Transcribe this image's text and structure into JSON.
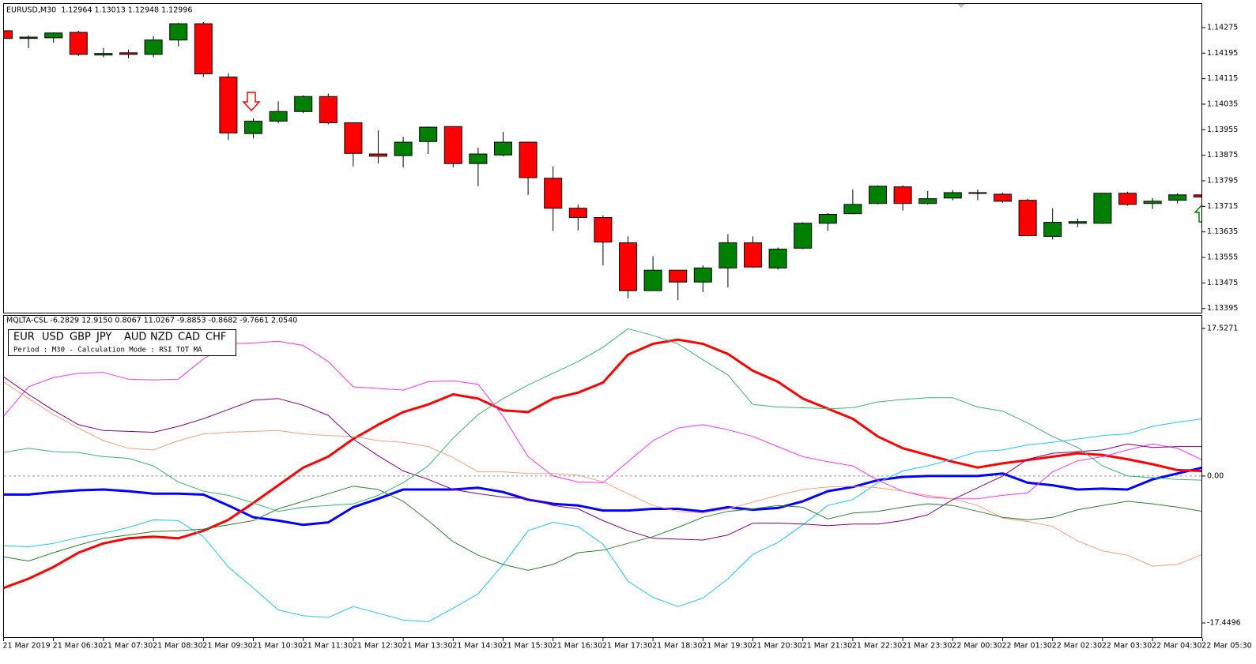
{
  "chart_data": [
    {
      "type": "candlestick",
      "title": "EURUSD,M30  1.12964 1.13013 1.12948 1.12996",
      "up_color": "#008000",
      "down_color": "#ff0000",
      "open": [
        1.14265,
        1.14241,
        1.14243,
        1.1426,
        1.14189,
        1.14196,
        1.14191,
        1.14236,
        1.14287,
        1.1412,
        1.13943,
        1.13982,
        1.14012,
        1.14059,
        1.13977,
        1.13879,
        1.13874,
        1.13918,
        1.13965,
        1.13849,
        1.13876,
        1.13916,
        1.13803,
        1.13709,
        1.1368,
        1.13601,
        1.13451,
        1.13515,
        1.13478,
        1.13522,
        1.13601,
        1.13522,
        1.13584,
        1.13662,
        1.13692,
        1.13724,
        1.13776,
        1.13724,
        1.13741,
        1.13756,
        1.13753,
        1.13734,
        1.13621,
        1.13662,
        1.13662,
        1.13756,
        1.13724,
        1.13734,
        1.13751
      ],
      "high": [
        1.14265,
        1.1425,
        1.1426,
        1.14265,
        1.14211,
        1.14206,
        1.14248,
        1.1429,
        1.14292,
        1.14132,
        1.1399,
        1.14044,
        1.14063,
        1.14068,
        1.13977,
        1.13953,
        1.13933,
        1.13965,
        1.13965,
        1.13899,
        1.13948,
        1.13916,
        1.1384,
        1.13721,
        1.13687,
        1.13621,
        1.13559,
        1.13515,
        1.1353,
        1.13628,
        1.13621,
        1.13586,
        1.13665,
        1.13694,
        1.13768,
        1.13781,
        1.13781,
        1.13763,
        1.13766,
        1.13768,
        1.13758,
        1.13739,
        1.13709,
        1.13677,
        1.13756,
        1.13761,
        1.13741,
        1.13756,
        1.13751
      ],
      "low": [
        1.14236,
        1.14211,
        1.14228,
        1.14186,
        1.14182,
        1.14179,
        1.14182,
        1.14216,
        1.1412,
        1.13923,
        1.13928,
        1.13975,
        1.14007,
        1.13972,
        1.1384,
        1.13849,
        1.13837,
        1.13879,
        1.13837,
        1.13778,
        1.13871,
        1.13751,
        1.13638,
        1.1364,
        1.1353,
        1.13426,
        1.13451,
        1.13421,
        1.13446,
        1.13461,
        1.13522,
        1.13517,
        1.13581,
        1.13638,
        1.1369,
        1.13721,
        1.13702,
        1.13721,
        1.13734,
        1.13734,
        1.13726,
        1.13621,
        1.13611,
        1.1365,
        1.1366,
        1.13717,
        1.13707,
        1.13724,
        1.13744
      ],
      "close": [
        1.14241,
        1.14245,
        1.14258,
        1.14191,
        1.14194,
        1.14191,
        1.14236,
        1.14287,
        1.1413,
        1.13945,
        1.13982,
        1.14012,
        1.14059,
        1.13977,
        1.13881,
        1.13872,
        1.13916,
        1.13963,
        1.13849,
        1.13879,
        1.13916,
        1.13805,
        1.13709,
        1.1368,
        1.13603,
        1.13451,
        1.13515,
        1.13478,
        1.13522,
        1.13601,
        1.13525,
        1.13581,
        1.13662,
        1.1369,
        1.13721,
        1.13778,
        1.13724,
        1.13739,
        1.13758,
        1.13758,
        1.13731,
        1.13623,
        1.13665,
        1.13667,
        1.13756,
        1.13721,
        1.13731,
        1.13751,
        1.13744
      ],
      "ylim": [
        1.13382,
        1.14349
      ],
      "yticks": [
        1.13395,
        1.13475,
        1.13555,
        1.13635,
        1.13715,
        1.13795,
        1.13875,
        1.13955,
        1.14035,
        1.14115,
        1.14195,
        1.14275
      ]
    },
    {
      "type": "line",
      "title": "MQLTA-CSL -6.2829 12.9150 0.8067 11.0267 -9.8853 -0.8682 -9.7661 2.0540",
      "subtitle": "Period : M30 - Calculation Mode : RSI TOT MA",
      "categories": [
        "21 Mar 2019",
        null,
        "21 Mar 06:30",
        null,
        "21 Mar 07:30",
        null,
        "21 Mar 08:30",
        null,
        "21 Mar 09:30",
        null,
        "21 Mar 10:30",
        null,
        "21 Mar 11:30",
        null,
        "21 Mar 12:30",
        null,
        "21 Mar 13:30",
        null,
        "21 Mar 14:30",
        null,
        "21 Mar 15:30",
        null,
        "21 Mar 16:30",
        null,
        "21 Mar 17:30",
        null,
        "21 Mar 18:30",
        null,
        "21 Mar 19:30",
        null,
        "21 Mar 20:30",
        null,
        "21 Mar 21:30",
        null,
        "21 Mar 22:30",
        null,
        "21 Mar 23:30",
        null,
        "22 Mar 00:30",
        null,
        "22 Mar 01:30",
        null,
        "22 Mar 02:30",
        null,
        "22 Mar 03:30",
        null,
        "22 Mar 04:30",
        null,
        "22 Mar 05:30"
      ],
      "ylim": [
        -17.4496,
        17.5271
      ],
      "yticks": [
        -17.4496,
        {
          "value": 0,
          "label": "0.00"
        },
        17.5271
      ],
      "series": [
        {
          "name": "EUR",
          "color": "#0000ff",
          "width": 3,
          "values": [
            -2.2,
            -2.2,
            -1.9,
            -1.7,
            -1.6,
            -1.8,
            -2.1,
            -2.1,
            -2.2,
            -3.5,
            -4.9,
            -5.3,
            -5.8,
            -5.5,
            -3.7,
            -2.7,
            -1.6,
            -1.6,
            -1.6,
            -1.4,
            -1.9,
            -2.8,
            -3.3,
            -3.5,
            -4.1,
            -4.1,
            -3.9,
            -3.9,
            -4.2,
            -3.7,
            -4.0,
            -3.8,
            -3.0,
            -1.8,
            -1.3,
            -0.5,
            -0.1,
            0.0,
            0.0,
            0.0,
            0.3,
            -0.8,
            -1.1,
            -1.6,
            -1.5,
            -1.6,
            -0.4,
            0.3,
            1.0
          ]
        },
        {
          "name": "USD",
          "color": "#ff0000",
          "width": 3,
          "values": [
            -13.3,
            -12.2,
            -10.8,
            -9.1,
            -8.0,
            -7.4,
            -7.2,
            -7.4,
            -6.5,
            -5.2,
            -3.2,
            -1.1,
            1.0,
            2.3,
            4.4,
            6.1,
            7.6,
            8.5,
            9.7,
            9.2,
            7.8,
            7.6,
            9.2,
            9.9,
            11.1,
            14.4,
            15.7,
            16.2,
            15.7,
            14.5,
            12.5,
            11.2,
            9.2,
            8.0,
            6.8,
            4.7,
            3.3,
            2.5,
            1.7,
            1.0,
            1.5,
            1.9,
            2.3,
            2.7,
            2.5,
            2.0,
            1.4,
            0.7,
            0.6
          ]
        },
        {
          "name": "GBP",
          "color": "#1ec8f5",
          "width": 1,
          "values": [
            -8.3,
            -8.4,
            -8.0,
            -7.3,
            -6.8,
            -6.1,
            -5.2,
            -5.3,
            -7.2,
            -10.8,
            -13.3,
            -15.9,
            -16.6,
            -16.8,
            -15.5,
            -16.3,
            -17.1,
            -17.3,
            -15.7,
            -14.0,
            -10.5,
            -6.5,
            -5.5,
            -6.0,
            -8.1,
            -12.5,
            -14.4,
            -15.5,
            -14.5,
            -12.2,
            -9.3,
            -7.9,
            -5.8,
            -3.5,
            -2.8,
            -0.8,
            0.6,
            1.2,
            2.0,
            2.9,
            3.1,
            3.7,
            4.0,
            4.4,
            4.8,
            5.0,
            5.9,
            6.4,
            6.8
          ]
        },
        {
          "name": "JPY",
          "color": "#ff33ff",
          "width": 1,
          "values": [
            7.1,
            10.6,
            11.7,
            12.2,
            12.3,
            11.5,
            11.4,
            11.5,
            13.9,
            15.7,
            15.8,
            16.0,
            15.5,
            13.6,
            10.6,
            10.4,
            10.2,
            11.2,
            11.3,
            10.9,
            7.1,
            2.3,
            0.0,
            -0.7,
            -0.8,
            1.7,
            4.2,
            5.7,
            6.1,
            5.5,
            4.7,
            3.5,
            2.3,
            1.7,
            1.2,
            -0.5,
            -1.8,
            -2.5,
            -2.7,
            -2.7,
            -2.3,
            -2.0,
            0.5,
            1.8,
            2.3,
            3.1,
            3.8,
            3.3,
            1.9
          ]
        },
        {
          "name": "AUD",
          "color": "#f5a07e",
          "width": 1,
          "values": [
            11.2,
            9.2,
            7.3,
            5.7,
            4.2,
            3.3,
            3.1,
            4.2,
            5.0,
            5.2,
            5.3,
            5.4,
            5.0,
            4.8,
            4.7,
            4.2,
            4.0,
            3.5,
            2.2,
            0.5,
            0.5,
            0.3,
            0.3,
            0.1,
            -0.7,
            -2.1,
            -3.5,
            -4.2,
            -4.4,
            -3.9,
            -3.1,
            -2.3,
            -1.6,
            -1.3,
            -1.2,
            -1.4,
            -1.8,
            -2.3,
            -2.7,
            -3.5,
            -5.0,
            -5.4,
            -6.0,
            -7.7,
            -8.9,
            -9.4,
            -10.7,
            -10.5,
            -9.3
          ]
        },
        {
          "name": "NZD",
          "color": "#800080",
          "width": 1,
          "values": [
            11.8,
            9.7,
            7.8,
            6.1,
            5.4,
            5.3,
            5.2,
            5.9,
            6.8,
            7.9,
            9.0,
            9.2,
            8.4,
            7.2,
            4.4,
            2.4,
            0.6,
            -0.4,
            -1.6,
            -2.1,
            -2.5,
            -2.7,
            -3.5,
            -3.9,
            -5.3,
            -6.5,
            -7.4,
            -7.5,
            -7.6,
            -7.0,
            -5.6,
            -5.6,
            -5.7,
            -5.9,
            -5.7,
            -5.7,
            -5.3,
            -4.6,
            -2.8,
            -1.4,
            0.0,
            2.0,
            2.7,
            2.9,
            3.1,
            3.8,
            3.4,
            3.5,
            3.5
          ]
        },
        {
          "name": "CAD",
          "color": "#2e7d32",
          "width": 1,
          "values": [
            -9.6,
            -10.1,
            -9.1,
            -8.2,
            -7.4,
            -7.0,
            -6.6,
            -6.5,
            -6.3,
            -5.8,
            -5.3,
            -3.9,
            -3.0,
            -2.1,
            -1.2,
            -1.6,
            -3.0,
            -5.3,
            -7.8,
            -9.4,
            -10.5,
            -11.2,
            -10.5,
            -9.1,
            -8.8,
            -8.0,
            -7.2,
            -6.1,
            -4.9,
            -4.2,
            -3.9,
            -3.5,
            -3.7,
            -5.1,
            -4.4,
            -4.2,
            -3.7,
            -3.3,
            -3.5,
            -4.2,
            -4.9,
            -5.2,
            -4.9,
            -4.0,
            -3.5,
            -3.0,
            -3.3,
            -3.7,
            -4.2
          ]
        },
        {
          "name": "CHF",
          "color": "#3cb371",
          "width": 1,
          "values": [
            2.8,
            3.3,
            2.9,
            2.8,
            2.3,
            2.1,
            1.2,
            -0.7,
            -1.8,
            -2.3,
            -3.2,
            -4.2,
            -3.7,
            -3.5,
            -3.3,
            -2.3,
            -0.8,
            1.2,
            4.5,
            7.3,
            9.2,
            10.8,
            12.2,
            13.6,
            15.3,
            17.5,
            16.7,
            15.7,
            13.8,
            12.0,
            8.5,
            8.2,
            8.1,
            8.0,
            8.1,
            8.8,
            9.1,
            9.3,
            9.3,
            8.2,
            7.7,
            6.3,
            4.7,
            3.4,
            1.2,
            0.0,
            -0.2,
            -0.4,
            -0.5
          ]
        }
      ]
    }
  ]
}
